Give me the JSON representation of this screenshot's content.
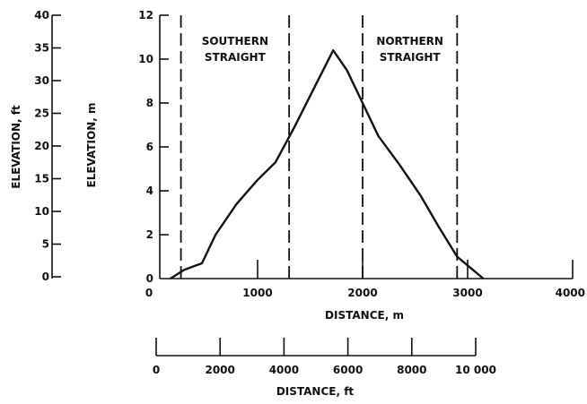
{
  "chart_data": {
    "type": "line",
    "title": "",
    "xlabel": "DISTANCE, m",
    "ylabel": "ELEVATION, m",
    "xlim": [
      0,
      4000
    ],
    "ylim": [
      0,
      12
    ],
    "xticks": [
      "0",
      "1000",
      "2000",
      "3000",
      "4000"
    ],
    "yticks": [
      "0",
      "2",
      "4",
      "6",
      "8",
      "10",
      "12"
    ],
    "series": [
      {
        "x": [
          170,
          300,
          470,
          600,
          800,
          1000,
          1170,
          1350,
          1550,
          1720,
          1850,
          2000,
          2150,
          2350,
          2550,
          2720,
          2900,
          3050,
          3150
        ],
        "y": [
          0.0,
          0.4,
          0.7,
          2.0,
          3.4,
          4.5,
          5.3,
          6.9,
          8.8,
          10.4,
          9.5,
          8.0,
          6.5,
          5.2,
          3.8,
          2.4,
          1.0,
          0.4,
          0.0
        ]
      }
    ],
    "regions": [
      {
        "label": "SOUTHERN\nSTRAIGHT",
        "x_start": 270,
        "x_end": 1300
      },
      {
        "label": "NORTHERN\nSTRAIGHT",
        "x_start": 2000,
        "x_end": 2900
      }
    ],
    "secondary_y_axis": {
      "label": "ELEVATION, ft",
      "ticks": [
        "0",
        "5",
        "10",
        "15",
        "20",
        "25",
        "30",
        "35",
        "40"
      ]
    },
    "secondary_x_axis": {
      "label": "DISTANCE, ft",
      "ticks": [
        "0",
        "2000",
        "4000",
        "6000",
        "8000",
        "10 000"
      ]
    }
  }
}
